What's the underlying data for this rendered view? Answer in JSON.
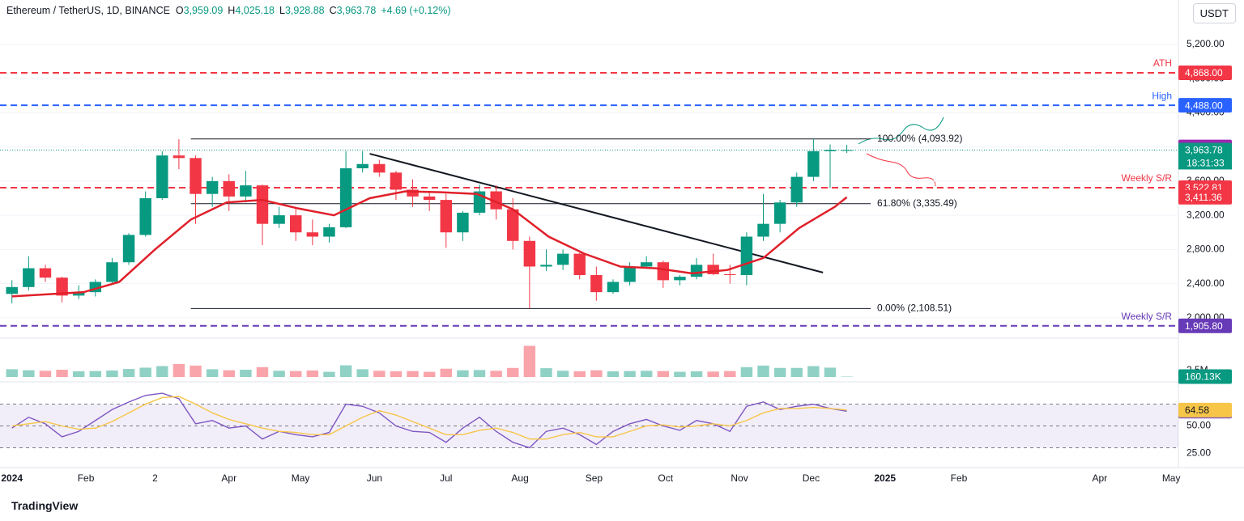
{
  "header": {
    "symbol": "Ethereum / TetherUS, 1D, BINANCE",
    "ohlc": [
      {
        "k": "O",
        "v": "3,959.09"
      },
      {
        "k": "H",
        "v": "4,025.18"
      },
      {
        "k": "L",
        "v": "3,928.88"
      },
      {
        "k": "C",
        "v": "3,963.78"
      }
    ],
    "change": "+4.69 (+0.12%)",
    "currency": "USDT",
    "brand": "TradingView"
  },
  "chart_data": [
    {
      "type": "candlestick",
      "xlim": [
        -5,
        489
      ],
      "ylim": [
        1790,
        5720
      ],
      "up_color": "#089981",
      "down_color": "#f23645",
      "yticks": [
        {
          "value": 5200,
          "label": "5,200.00"
        },
        {
          "value": 4800,
          "label": "4,800.00"
        },
        {
          "value": 4400,
          "label": "4,400.00"
        },
        {
          "value": 4000,
          "label": "4,000.00"
        },
        {
          "value": 3600,
          "label": "3,600.00"
        },
        {
          "value": 3200,
          "label": "3,200.00"
        },
        {
          "value": 2800,
          "label": "2,800.00"
        },
        {
          "value": 2400,
          "label": "2,400.00"
        },
        {
          "value": 2000,
          "label": "2,000.00"
        }
      ],
      "x": [
        0,
        7,
        14,
        21,
        28,
        35,
        42,
        49,
        56,
        63,
        70,
        77,
        84,
        91,
        98,
        105,
        112,
        119,
        126,
        133,
        140,
        147,
        154,
        161,
        168,
        175,
        182,
        189,
        196,
        203,
        210,
        217,
        224,
        231,
        238,
        245,
        252,
        259,
        266,
        273,
        280,
        287,
        294,
        301,
        308,
        315,
        322,
        329,
        336,
        343,
        350
      ],
      "open": [
        2280,
        2360,
        2580,
        2470,
        2260,
        2300,
        2420,
        2650,
        2970,
        3400,
        3900,
        3870,
        3450,
        3600,
        3420,
        3550,
        3100,
        3200,
        3000,
        2950,
        3060,
        3750,
        3800,
        3700,
        3500,
        3420,
        3380,
        3000,
        3230,
        3480,
        3270,
        2900,
        2600,
        2620,
        2750,
        2500,
        2300,
        2420,
        2600,
        2650,
        2440,
        2480,
        2620,
        2510,
        2500,
        2950,
        3100,
        3350,
        3650,
        3950,
        3959.09
      ],
      "high": [
        2440,
        2720,
        2620,
        2480,
        2380,
        2450,
        2700,
        2990,
        3480,
        3950,
        4090,
        3900,
        3650,
        3680,
        3720,
        3560,
        3300,
        3290,
        3150,
        3100,
        3950,
        3950,
        3850,
        3720,
        3620,
        3480,
        3450,
        3250,
        3560,
        3550,
        3400,
        2950,
        2800,
        2800,
        2760,
        2600,
        2450,
        2650,
        2720,
        2670,
        2500,
        2700,
        2750,
        2620,
        3000,
        3450,
        3380,
        3700,
        4090,
        4030,
        4025.18
      ],
      "low": [
        2170,
        2320,
        2420,
        2180,
        2220,
        2250,
        2400,
        2620,
        2950,
        3380,
        3740,
        3100,
        3300,
        3250,
        3350,
        2850,
        3050,
        2900,
        2850,
        2880,
        3050,
        3700,
        3650,
        3380,
        3300,
        3250,
        2820,
        2900,
        3200,
        3150,
        2800,
        2110,
        2550,
        2560,
        2450,
        2200,
        2280,
        2380,
        2580,
        2350,
        2380,
        2450,
        2500,
        2400,
        2380,
        2900,
        3000,
        3300,
        3600,
        3520,
        3928.88
      ],
      "close": [
        2360,
        2580,
        2470,
        2260,
        2300,
        2420,
        2650,
        2970,
        3400,
        3900,
        3870,
        3450,
        3600,
        3420,
        3550,
        3100,
        3200,
        3000,
        2950,
        3060,
        3750,
        3800,
        3700,
        3500,
        3420,
        3380,
        3000,
        3230,
        3480,
        3270,
        2900,
        2600,
        2620,
        2750,
        2500,
        2300,
        2420,
        2600,
        2650,
        2440,
        2480,
        2620,
        2510,
        2500,
        2950,
        3100,
        3350,
        3650,
        3950,
        3964,
        3963.78
      ],
      "ma": {
        "color": "#e0202a",
        "x": [
          0,
          30,
          45,
          60,
          75,
          90,
          105,
          120,
          135,
          150,
          165,
          180,
          195,
          210,
          225,
          240,
          255,
          270,
          285,
          300,
          315,
          330,
          345,
          350
        ],
        "values": [
          2250,
          2300,
          2420,
          2800,
          3150,
          3350,
          3380,
          3280,
          3200,
          3400,
          3480,
          3470,
          3450,
          3270,
          2950,
          2750,
          2600,
          2580,
          2520,
          2560,
          2700,
          3050,
          3300,
          3411.36
        ]
      },
      "trendline": {
        "x": [
          150,
          340
        ],
        "y": [
          3920,
          2530
        ]
      },
      "fib_x": [
        75,
        360
      ],
      "fib": [
        {
          "value": 4093.92,
          "label": "100.00% (4,093.92)"
        },
        {
          "value": 3335.49,
          "label": "61.80% (3,335.49)"
        },
        {
          "value": 2108.51,
          "label": "0.00% (2,108.51)"
        }
      ],
      "levels": [
        {
          "value": 4868,
          "label": "4,868.00",
          "tag": "ATH",
          "color": "#f23645"
        },
        {
          "value": 4488,
          "label": "4,488.00",
          "tag": "High",
          "color": "#2962ff"
        },
        {
          "value": 3522.81,
          "label": "3,522.81",
          "tag": "Weekly S/R",
          "color": "#f23645"
        },
        {
          "value": 1905.8,
          "label": "1,905.80",
          "tag": "Weekly S/R",
          "color": "#673ab7"
        }
      ],
      "badges": [
        {
          "value": 4000,
          "label": "4,000.00",
          "color": "#9c27b0"
        },
        {
          "value": 3963.78,
          "label": "3,963.78",
          "extra": "18:31:33",
          "color": "#089981"
        },
        {
          "value": 3411.36,
          "label": "3,411.36",
          "color": "#f23645"
        }
      ]
    },
    {
      "type": "bar",
      "xlim": [
        -5,
        489
      ],
      "ylim": [
        0,
        13.1
      ],
      "yticks": [
        {
          "value": 2.5,
          "label": "2.5M"
        }
      ],
      "x": [
        0,
        7,
        14,
        21,
        28,
        35,
        42,
        49,
        56,
        63,
        70,
        77,
        84,
        91,
        98,
        105,
        112,
        119,
        126,
        133,
        140,
        147,
        154,
        161,
        168,
        175,
        182,
        189,
        196,
        203,
        210,
        217,
        224,
        231,
        238,
        245,
        252,
        259,
        266,
        273,
        280,
        287,
        294,
        301,
        308,
        315,
        322,
        329,
        336,
        343,
        350
      ],
      "values": [
        3,
        2.6,
        2.4,
        2.8,
        2.2,
        2.3,
        2.5,
        3.1,
        3.6,
        4.2,
        5,
        4.4,
        3,
        2.6,
        2.8,
        3.8,
        2.4,
        2.3,
        2.5,
        2,
        4.5,
        3,
        2.4,
        2.2,
        2.3,
        2,
        3.2,
        2.6,
        2.7,
        2.4,
        3.5,
        12,
        3.4,
        2.4,
        2.2,
        2.6,
        2.2,
        2.3,
        2.4,
        2.3,
        2,
        2.2,
        2.1,
        2.3,
        3.8,
        4.4,
        3.5,
        3.5,
        4.2,
        3.6,
        0.16013
      ],
      "badge": {
        "value": 0.16013,
        "label": "160.13K",
        "color": "#089981"
      }
    },
    {
      "type": "line",
      "xlim": [
        -5,
        489
      ],
      "ylim": [
        14,
        86
      ],
      "levels": [
        70,
        50,
        30
      ],
      "band_color": "#7e57c2",
      "yticks": [
        {
          "value": 50,
          "label": "50.00"
        },
        {
          "value": 25,
          "label": "25.00"
        }
      ],
      "xticks": [
        {
          "value": 0,
          "label": "2024"
        },
        {
          "value": 31,
          "label": "Feb"
        },
        {
          "value": 60,
          "label": "2"
        },
        {
          "value": 91,
          "label": "Apr"
        },
        {
          "value": 121,
          "label": "May"
        },
        {
          "value": 152,
          "label": "Jun"
        },
        {
          "value": 182,
          "label": "Jul"
        },
        {
          "value": 213,
          "label": "Aug"
        },
        {
          "value": 244,
          "label": "Sep"
        },
        {
          "value": 274,
          "label": "Oct"
        },
        {
          "value": 305,
          "label": "Nov"
        },
        {
          "value": 335,
          "label": "Dec"
        },
        {
          "value": 366,
          "label": "2025"
        },
        {
          "value": 397,
          "label": "Feb"
        },
        {
          "value": 456,
          "label": "Apr"
        },
        {
          "value": 486,
          "label": "May"
        }
      ],
      "x": [
        0,
        7,
        14,
        21,
        28,
        35,
        42,
        49,
        56,
        63,
        70,
        77,
        84,
        91,
        98,
        105,
        112,
        119,
        126,
        133,
        140,
        147,
        154,
        161,
        168,
        175,
        182,
        189,
        196,
        203,
        210,
        217,
        224,
        231,
        238,
        245,
        252,
        259,
        266,
        273,
        280,
        287,
        294,
        301,
        308,
        315,
        322,
        329,
        336,
        343,
        350
      ],
      "series": [
        {
          "color": "#7e57c2",
          "values": [
            48,
            58,
            52,
            40,
            45,
            55,
            65,
            72,
            78,
            80,
            75,
            52,
            55,
            48,
            50,
            38,
            45,
            42,
            40,
            44,
            70,
            68,
            62,
            50,
            45,
            44,
            35,
            48,
            58,
            45,
            35,
            30,
            45,
            48,
            42,
            33,
            45,
            52,
            56,
            50,
            46,
            55,
            52,
            45,
            68,
            72,
            65,
            68,
            70,
            66,
            63.51
          ],
          "badge": {
            "value": 63.51,
            "label": "63.51"
          }
        },
        {
          "color": "#f7c548",
          "values": [
            50,
            52,
            54,
            50,
            47,
            48,
            54,
            62,
            70,
            76,
            77,
            70,
            62,
            56,
            52,
            48,
            45,
            44,
            42,
            42,
            50,
            58,
            64,
            60,
            54,
            48,
            42,
            42,
            46,
            48,
            44,
            38,
            38,
            42,
            44,
            40,
            40,
            45,
            50,
            51,
            49,
            50,
            52,
            50,
            55,
            62,
            66,
            66,
            67,
            66,
            64.58
          ],
          "badge": {
            "value": 64.58,
            "label": "64.58"
          }
        }
      ]
    }
  ]
}
